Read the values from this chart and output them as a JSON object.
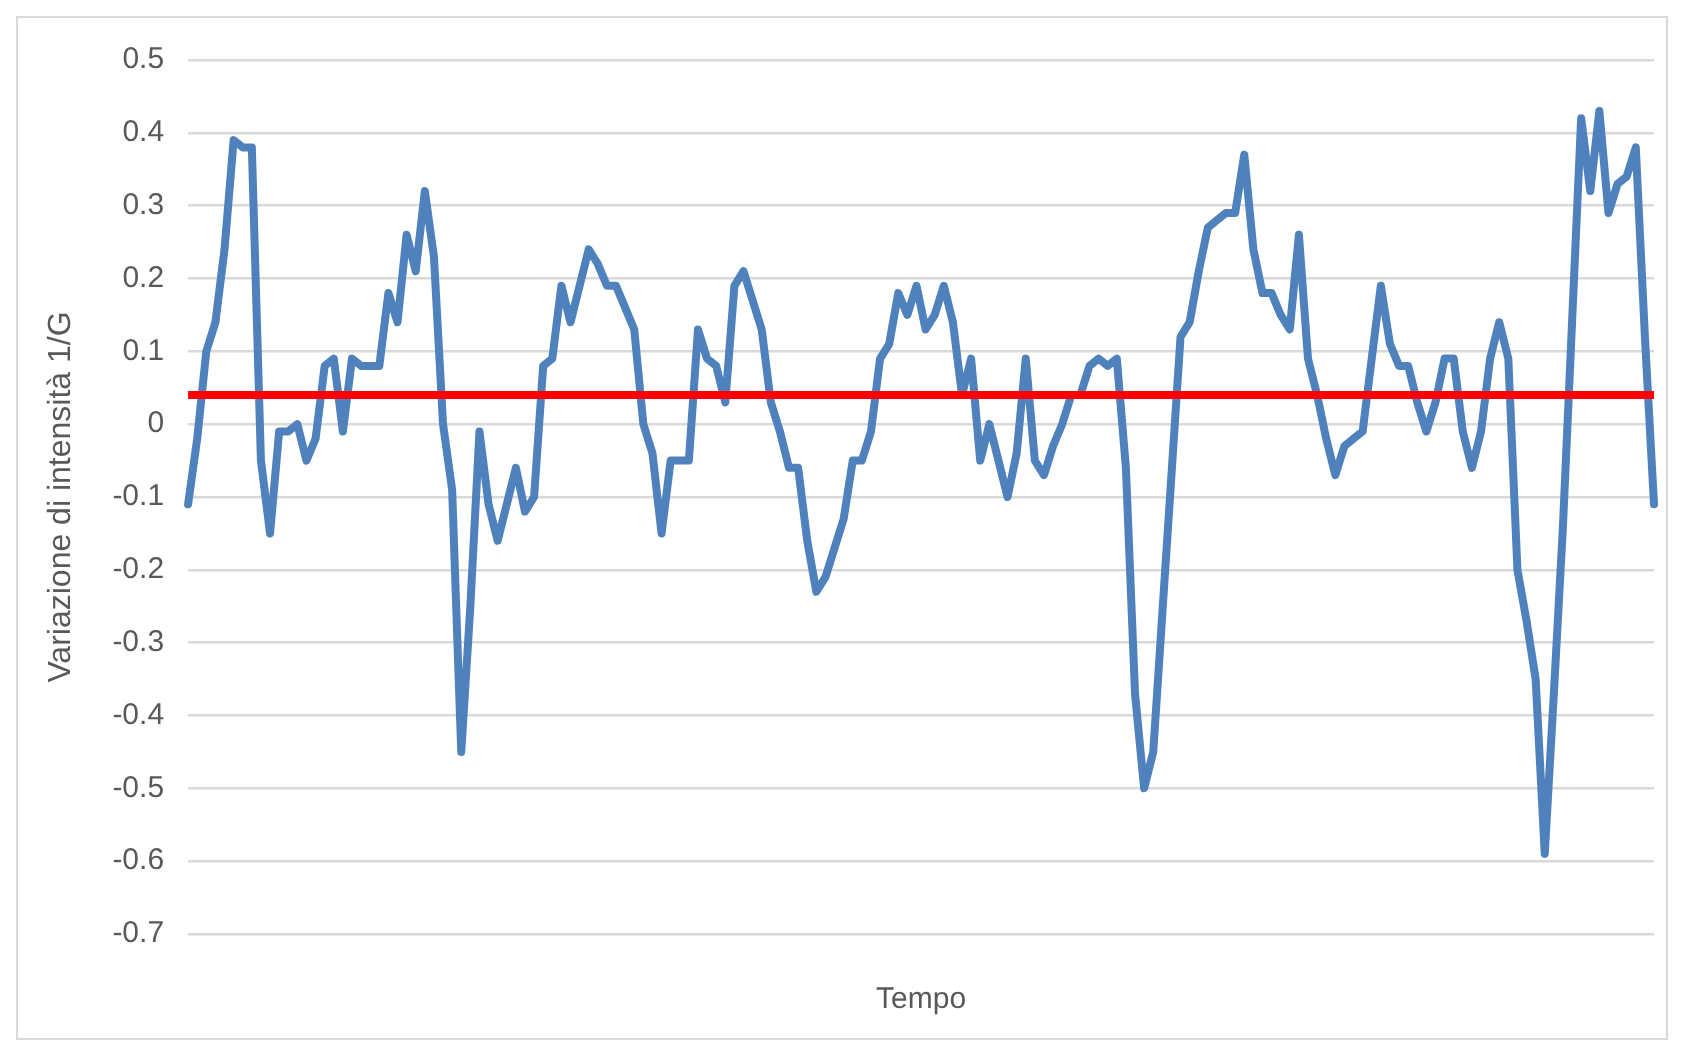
{
  "chart_data": {
    "type": "line",
    "xlabel": "Tempo",
    "ylabel": "Variazione di intensità 1/G",
    "categories": [
      null,
      null,
      null,
      null,
      null,
      null,
      null,
      null,
      null,
      null,
      null,
      null,
      null,
      null,
      null,
      null,
      null,
      null,
      null,
      null,
      null,
      null,
      null,
      null,
      null,
      null,
      null,
      null,
      null,
      null,
      null,
      null,
      null,
      null,
      null,
      null,
      null,
      null,
      null,
      null,
      null,
      null,
      null,
      null,
      null,
      null,
      null,
      null,
      null,
      null,
      null,
      null,
      null,
      null,
      null,
      null,
      null,
      null,
      null,
      null,
      null,
      null,
      null,
      null,
      null,
      null,
      null,
      null,
      null,
      null,
      null,
      null,
      null,
      null,
      null,
      null,
      null,
      null,
      null,
      null,
      null,
      null,
      null,
      null,
      null,
      null,
      null,
      null,
      null,
      null,
      null,
      null,
      null,
      null,
      null,
      null,
      null,
      null,
      null,
      null,
      null,
      null,
      null,
      null,
      null,
      null,
      null,
      null,
      null,
      null,
      null,
      null,
      null,
      null,
      null,
      null,
      null,
      null,
      null,
      null,
      null,
      null,
      null,
      null,
      null,
      null,
      null,
      null,
      null,
      null,
      null,
      null,
      null,
      null,
      null,
      null,
      null,
      null,
      null,
      null,
      null,
      null,
      null,
      null,
      null,
      null,
      null,
      null,
      null,
      null,
      null,
      null,
      null,
      null,
      null,
      null,
      null,
      null,
      null,
      null,
      null,
      null
    ],
    "series": [
      {
        "color": "#4f81bd",
        "values": [
          -0.11,
          -0.02,
          0.1,
          0.14,
          0.24,
          0.39,
          0.38,
          0.38,
          -0.05,
          -0.15,
          -0.01,
          -0.01,
          0,
          -0.05,
          -0.02,
          0.08,
          0.09,
          -0.01,
          0.09,
          0.08,
          0.08,
          0.08,
          0.18,
          0.14,
          0.26,
          0.21,
          0.32,
          0.23,
          0,
          -0.09,
          -0.45,
          -0.25,
          -0.01,
          -0.11,
          -0.16,
          -0.11,
          -0.06,
          -0.12,
          -0.1,
          0.08,
          0.09,
          0.19,
          0.14,
          0.19,
          0.24,
          0.22,
          0.19,
          0.19,
          0.16,
          0.13,
          0,
          -0.04,
          -0.15,
          -0.05,
          -0.05,
          -0.05,
          0.13,
          0.09,
          0.08,
          0.03,
          0.19,
          0.21,
          0.17,
          0.13,
          0.03,
          -0.01,
          -0.06,
          -0.06,
          -0.16,
          -0.23,
          -0.21,
          -0.17,
          -0.13,
          -0.05,
          -0.05,
          -0.01,
          0.09,
          0.11,
          0.18,
          0.15,
          0.19,
          0.13,
          0.15,
          0.19,
          0.14,
          0.04,
          0.09,
          -0.05,
          0,
          -0.05,
          -0.1,
          -0.04,
          0.09,
          -0.05,
          -0.07,
          -0.03,
          0,
          0.04,
          0.04,
          0.08,
          0.09,
          0.08,
          0.09,
          -0.06,
          -0.37,
          -0.5,
          -0.45,
          -0.26,
          -0.07,
          0.12,
          0.14,
          0.21,
          0.27,
          0.28,
          0.29,
          0.29,
          0.37,
          0.24,
          0.18,
          0.18,
          0.15,
          0.13,
          0.26,
          0.09,
          0.04,
          -0.02,
          -0.07,
          -0.03,
          -0.02,
          -0.01,
          0.09,
          0.19,
          0.11,
          0.08,
          0.08,
          0.03,
          -0.01,
          0.03,
          0.09,
          0.09,
          -0.01,
          -0.06,
          -0.01,
          0.09,
          0.14,
          0.09,
          -0.2,
          -0.27,
          -0.35,
          -0.59,
          -0.37,
          -0.14,
          0.14,
          0.42,
          0.32,
          0.43,
          0.29,
          0.33,
          0.34,
          0.38,
          0.12,
          -0.11
        ]
      }
    ],
    "ylim": [
      -0.7,
      0.5
    ],
    "yticks": [
      -0.7,
      -0.6,
      -0.5,
      -0.4,
      -0.3,
      -0.2,
      -0.1,
      0,
      0.1,
      0.2,
      0.3,
      0.4,
      0.5
    ],
    "grid": "y",
    "marker": "none",
    "line_style": "solid",
    "ref_lines": [
      {
        "axis": "y",
        "value": 0.04,
        "color": "#ff0000"
      }
    ]
  }
}
